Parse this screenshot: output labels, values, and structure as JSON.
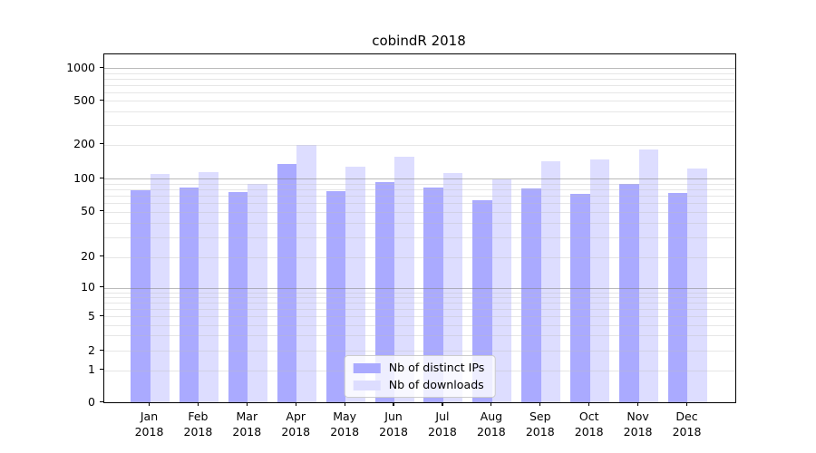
{
  "title": "cobindR 2018",
  "chart_data": {
    "type": "bar",
    "title": "cobindR 2018",
    "categories": [
      "Jan",
      "Feb",
      "Mar",
      "Apr",
      "May",
      "Jun",
      "Jul",
      "Aug",
      "Sep",
      "Oct",
      "Nov",
      "Dec"
    ],
    "category_year": "2018",
    "series": [
      {
        "name": "Nb of distinct IPs",
        "color": "#aaaaff",
        "values": [
          78,
          83,
          75,
          135,
          77,
          93,
          83,
          64,
          81,
          73,
          89,
          74
        ]
      },
      {
        "name": "Nb of downloads",
        "color": "#ddddff",
        "values": [
          110,
          115,
          89,
          200,
          128,
          156,
          112,
          99,
          142,
          148,
          181,
          123
        ]
      }
    ],
    "y_scale": "log",
    "yticks": [
      0,
      1,
      2,
      5,
      10,
      20,
      50,
      100,
      200,
      500,
      1000
    ],
    "minor_gridlines": [
      3,
      4,
      6,
      7,
      8,
      9,
      30,
      40,
      60,
      70,
      80,
      90,
      300,
      400,
      600,
      700,
      800,
      900
    ],
    "major_gridlines": [
      10,
      100,
      1000
    ],
    "ylim": [
      0,
      1330
    ],
    "grid": true,
    "legend_position": "lower center",
    "colors": {
      "background": "#ffffff",
      "spine": "#000000",
      "grid_major": "#c0c0c0",
      "grid_minor": "#e9e9e9"
    }
  }
}
